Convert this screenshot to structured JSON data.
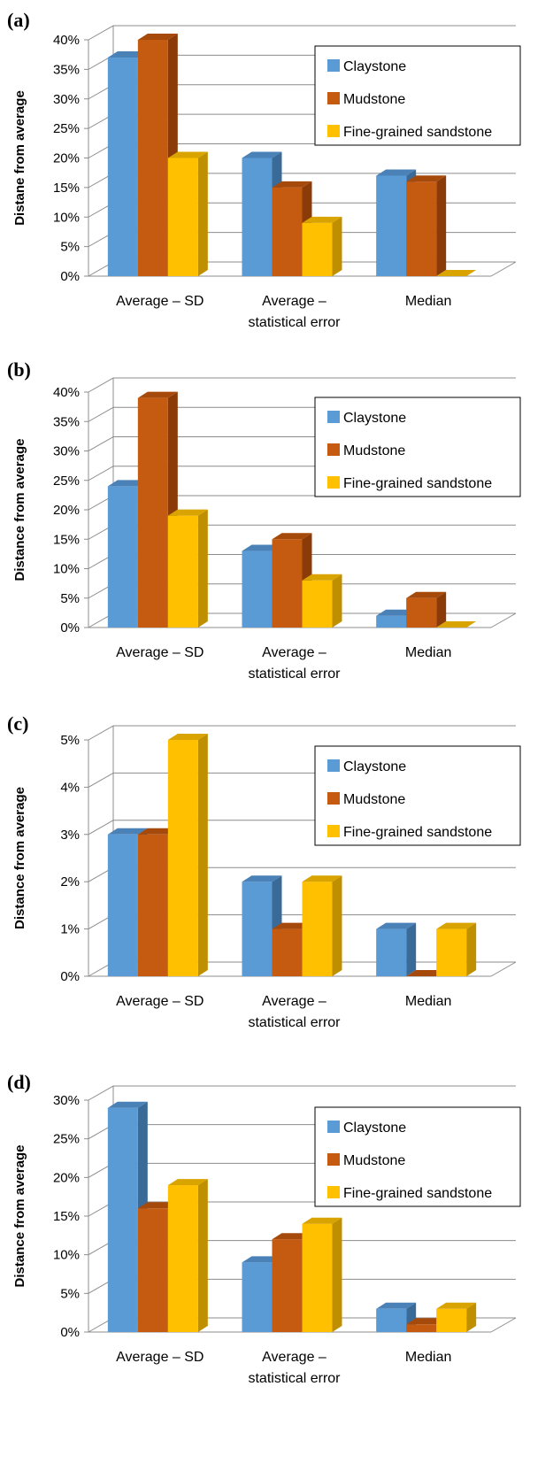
{
  "chart_data": [
    {
      "panel": "(a)",
      "type": "bar",
      "ylabel": "Distane from average",
      "categories": [
        "Average – SD",
        "Average – statistical error",
        "Median"
      ],
      "ylim": [
        0,
        40
      ],
      "yticks": [
        "0%",
        "5%",
        "10%",
        "15%",
        "20%",
        "25%",
        "30%",
        "35%",
        "40%"
      ],
      "series": [
        {
          "name": "Claystone",
          "values": [
            37,
            20,
            17
          ]
        },
        {
          "name": "Mudstone",
          "values": [
            40,
            15,
            16
          ]
        },
        {
          "name": "Fine-grained sandstone",
          "values": [
            20,
            9,
            0
          ]
        }
      ],
      "legend": "top-right",
      "grid": true
    },
    {
      "panel": "(b)",
      "type": "bar",
      "ylabel": "Distance from average",
      "categories": [
        "Average – SD",
        "Average – statistical error",
        "Median"
      ],
      "ylim": [
        0,
        40
      ],
      "yticks": [
        "0%",
        "5%",
        "10%",
        "15%",
        "20%",
        "25%",
        "30%",
        "35%",
        "40%"
      ],
      "series": [
        {
          "name": "Claystone",
          "values": [
            24,
            13,
            2
          ]
        },
        {
          "name": "Mudstone",
          "values": [
            39,
            15,
            5
          ]
        },
        {
          "name": "Fine-grained sandstone",
          "values": [
            19,
            8,
            0
          ]
        }
      ],
      "legend": "top-right",
      "grid": true
    },
    {
      "panel": "(c)",
      "type": "bar",
      "ylabel": "Distance from average",
      "categories": [
        "Average – SD",
        "Average – statistical error",
        "Median"
      ],
      "ylim": [
        0,
        5
      ],
      "yticks": [
        "0%",
        "1%",
        "2%",
        "3%",
        "4%",
        "5%"
      ],
      "series": [
        {
          "name": "Claystone",
          "values": [
            3,
            2,
            1
          ]
        },
        {
          "name": "Mudstone",
          "values": [
            3,
            1,
            0
          ]
        },
        {
          "name": "Fine-grained sandstone",
          "values": [
            5,
            2,
            1
          ]
        }
      ],
      "legend": "top-right",
      "grid": true
    },
    {
      "panel": "(d)",
      "type": "bar",
      "ylabel": "Distance from average",
      "categories": [
        "Average – SD",
        "Average – statistical error",
        "Median"
      ],
      "ylim": [
        0,
        30
      ],
      "yticks": [
        "0%",
        "5%",
        "10%",
        "15%",
        "20%",
        "25%",
        "30%"
      ],
      "series": [
        {
          "name": "Claystone",
          "values": [
            29,
            9,
            3
          ]
        },
        {
          "name": "Mudstone",
          "values": [
            16,
            12,
            1
          ]
        },
        {
          "name": "Fine-grained sandstone",
          "values": [
            19,
            14,
            3
          ]
        }
      ],
      "legend": "top-right",
      "grid": true
    }
  ],
  "colors": {
    "Claystone": {
      "front": "#5b9bd5",
      "side": "#3a6b98",
      "top": "#4a82b8"
    },
    "Mudstone": {
      "front": "#c55a11",
      "side": "#8a3b08",
      "top": "#a64a0c"
    },
    "Fine-grained sandstone": {
      "front": "#ffc000",
      "side": "#bf8f00",
      "top": "#d9a300"
    },
    "grid": "#8c8c8c"
  }
}
